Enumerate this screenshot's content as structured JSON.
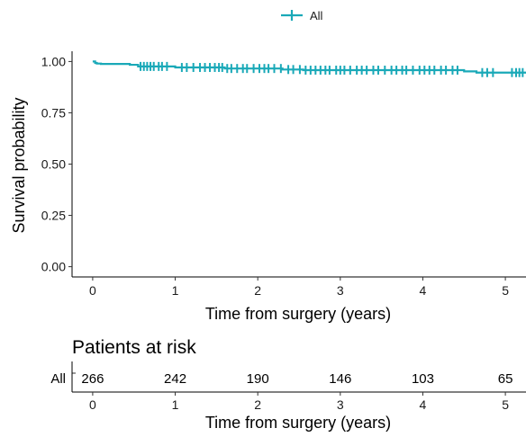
{
  "chart_data": [
    {
      "type": "line",
      "subtype": "kaplan-meier survival curve",
      "xlabel": "Time from surgery (years)",
      "ylabel": "Survival probability",
      "xlim": [
        -0.25,
        5.25
      ],
      "ylim": [
        -0.05,
        1.05
      ],
      "x_ticks": [
        0,
        1,
        2,
        3,
        4,
        5
      ],
      "x_tick_labels": [
        "0",
        "1",
        "2",
        "3",
        "4",
        "5"
      ],
      "y_ticks": [
        0.0,
        0.25,
        0.5,
        0.75,
        1.0
      ],
      "y_tick_labels": [
        "0.00",
        "0.25",
        "0.50",
        "0.75",
        "1.00"
      ],
      "grid": false,
      "legend": {
        "position": "top",
        "entries": [
          "All"
        ]
      },
      "series": [
        {
          "name": "All",
          "color": "#1aa9b8",
          "steps": [
            [
              0,
              1.0
            ],
            [
              0.03,
              0.993
            ],
            [
              0.05,
              0.99
            ],
            [
              0.1,
              0.988
            ],
            [
              0.45,
              0.984
            ],
            [
              0.55,
              0.976
            ],
            [
              1.0,
              0.971
            ],
            [
              1.6,
              0.966
            ],
            [
              2.3,
              0.961
            ],
            [
              2.55,
              0.958
            ],
            [
              4.5,
              0.952
            ],
            [
              4.65,
              0.946
            ],
            [
              5.25,
              0.946
            ]
          ],
          "censor_marks": [
            0.58,
            0.62,
            0.66,
            0.7,
            0.74,
            0.8,
            0.84,
            0.9,
            1.08,
            1.14,
            1.22,
            1.3,
            1.36,
            1.42,
            1.48,
            1.53,
            1.57,
            1.63,
            1.68,
            1.75,
            1.82,
            1.87,
            1.95,
            2.02,
            2.08,
            2.13,
            2.2,
            2.28,
            2.37,
            2.43,
            2.51,
            2.58,
            2.64,
            2.7,
            2.76,
            2.82,
            2.87,
            2.95,
            3.0,
            3.05,
            3.12,
            3.2,
            3.26,
            3.32,
            3.4,
            3.46,
            3.54,
            3.62,
            3.68,
            3.75,
            3.8,
            3.88,
            3.96,
            4.02,
            4.08,
            4.14,
            4.22,
            4.28,
            4.36,
            4.42,
            4.72,
            4.78,
            4.85,
            5.08,
            5.13,
            5.17,
            5.21
          ]
        }
      ]
    },
    {
      "type": "table",
      "title": "Patients at risk",
      "xlabel": "Time from surgery (years)",
      "x_ticks": [
        0,
        1,
        2,
        3,
        4,
        5
      ],
      "x_tick_labels": [
        "0",
        "1",
        "2",
        "3",
        "4",
        "5"
      ],
      "row_label": "All",
      "row_label_color": "#1aa9b8",
      "values": [
        266,
        242,
        190,
        146,
        103,
        65
      ]
    }
  ]
}
